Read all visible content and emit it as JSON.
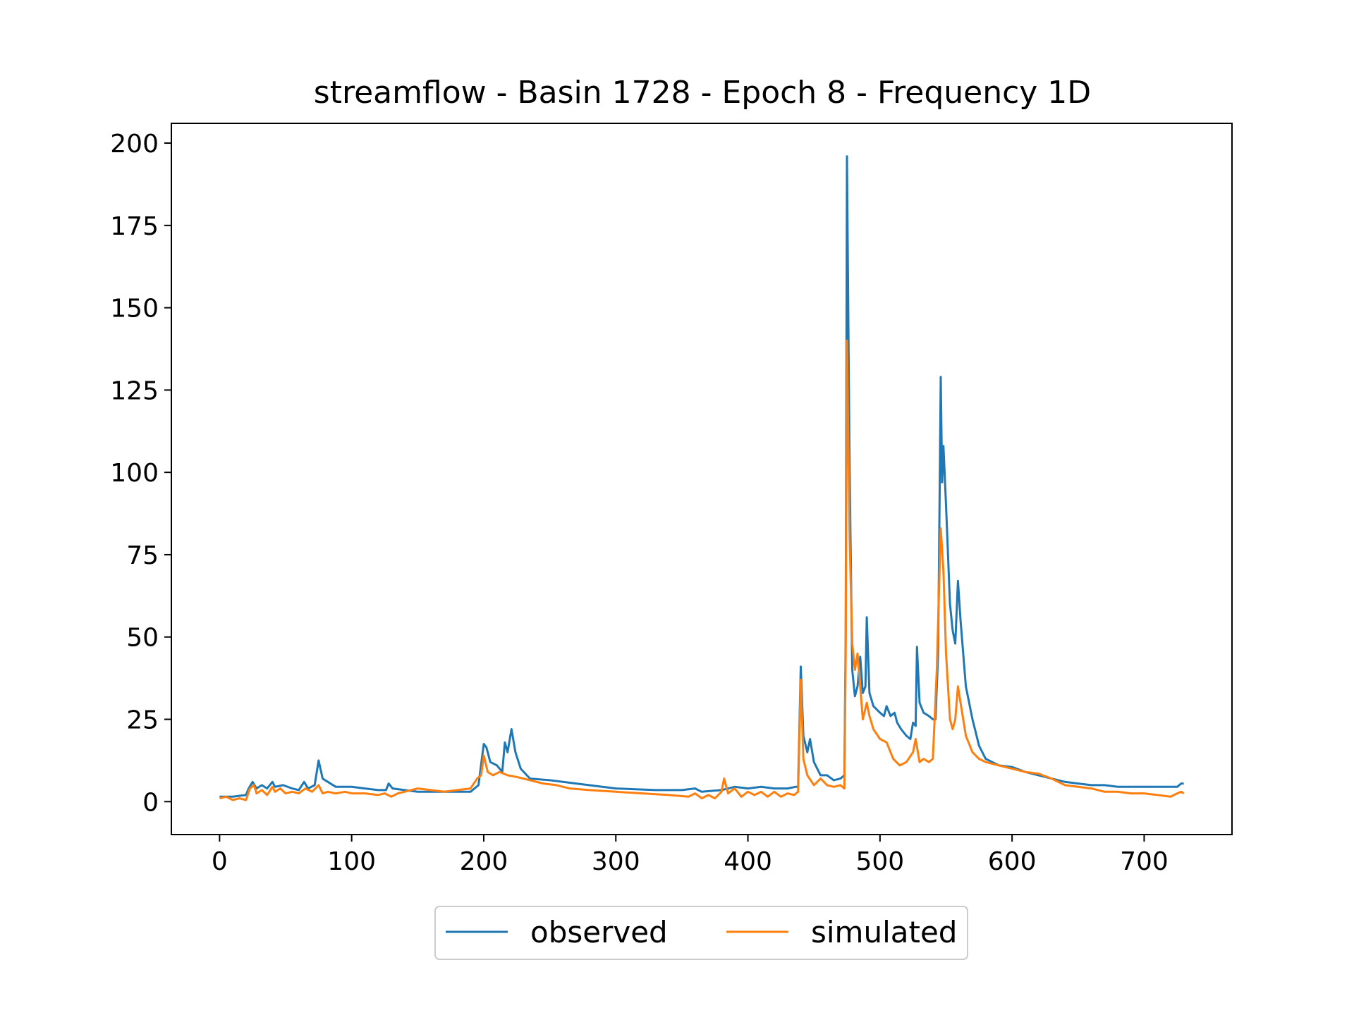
{
  "chart_data": {
    "type": "line",
    "title": "streamflow - Basin 1728 - Epoch 8 - Frequency 1D",
    "xlabel": "",
    "ylabel": "",
    "xlim": [
      -36.5,
      766.5
    ],
    "ylim": [
      -10,
      206
    ],
    "xticks": [
      0,
      100,
      200,
      300,
      400,
      500,
      600,
      700
    ],
    "yticks": [
      0,
      25,
      50,
      75,
      100,
      125,
      150,
      175,
      200
    ],
    "grid": false,
    "legend_placement": "bottom-center, below plot",
    "series": [
      {
        "name": "observed",
        "color": "#1f77b4",
        "points": [
          [
            0,
            1.5
          ],
          [
            10,
            1.5
          ],
          [
            20,
            2
          ],
          [
            22,
            4
          ],
          [
            25,
            6
          ],
          [
            28,
            4
          ],
          [
            32,
            5
          ],
          [
            36,
            4
          ],
          [
            40,
            6
          ],
          [
            42,
            4.5
          ],
          [
            48,
            5
          ],
          [
            55,
            4
          ],
          [
            60,
            3.5
          ],
          [
            64,
            6
          ],
          [
            67,
            4
          ],
          [
            72,
            5
          ],
          [
            75,
            12.5
          ],
          [
            78,
            7
          ],
          [
            82,
            6
          ],
          [
            88,
            4.5
          ],
          [
            100,
            4.5
          ],
          [
            110,
            4
          ],
          [
            120,
            3.5
          ],
          [
            126,
            3.5
          ],
          [
            128,
            5.5
          ],
          [
            131,
            4
          ],
          [
            140,
            3.5
          ],
          [
            150,
            3
          ],
          [
            170,
            3
          ],
          [
            190,
            3
          ],
          [
            196,
            5
          ],
          [
            200,
            17.5
          ],
          [
            202,
            16.5
          ],
          [
            205,
            12
          ],
          [
            210,
            11
          ],
          [
            214,
            9
          ],
          [
            216,
            18
          ],
          [
            218,
            15
          ],
          [
            221,
            22
          ],
          [
            224,
            15
          ],
          [
            228,
            10
          ],
          [
            235,
            7
          ],
          [
            250,
            6.5
          ],
          [
            270,
            5.5
          ],
          [
            300,
            4
          ],
          [
            330,
            3.5
          ],
          [
            350,
            3.5
          ],
          [
            360,
            4
          ],
          [
            365,
            3
          ],
          [
            380,
            3.5
          ],
          [
            390,
            4.5
          ],
          [
            400,
            4
          ],
          [
            410,
            4.5
          ],
          [
            420,
            4
          ],
          [
            430,
            4
          ],
          [
            436,
            4.5
          ],
          [
            438,
            4.5
          ],
          [
            440,
            41
          ],
          [
            442,
            20
          ],
          [
            445,
            15
          ],
          [
            447,
            19
          ],
          [
            450,
            12
          ],
          [
            455,
            8
          ],
          [
            460,
            8
          ],
          [
            465,
            6.5
          ],
          [
            470,
            7
          ],
          [
            473,
            8
          ],
          [
            474,
            50
          ],
          [
            475,
            196
          ],
          [
            477,
            100
          ],
          [
            479,
            40
          ],
          [
            481,
            32
          ],
          [
            483,
            35
          ],
          [
            485,
            44
          ],
          [
            487,
            33
          ],
          [
            489,
            35
          ],
          [
            490,
            56
          ],
          [
            492,
            33
          ],
          [
            495,
            29
          ],
          [
            500,
            27
          ],
          [
            503,
            26
          ],
          [
            505,
            29
          ],
          [
            508,
            26
          ],
          [
            511,
            27
          ],
          [
            513,
            24
          ],
          [
            516,
            22
          ],
          [
            520,
            20
          ],
          [
            523,
            19
          ],
          [
            525,
            24
          ],
          [
            527,
            23
          ],
          [
            528,
            47
          ],
          [
            530,
            30
          ],
          [
            533,
            27
          ],
          [
            537,
            26
          ],
          [
            540,
            25
          ],
          [
            542,
            25
          ],
          [
            544,
            45
          ],
          [
            546,
            129
          ],
          [
            547,
            97
          ],
          [
            548,
            108
          ],
          [
            550,
            90
          ],
          [
            553,
            60
          ],
          [
            555,
            52
          ],
          [
            557,
            48
          ],
          [
            559,
            67
          ],
          [
            561,
            55
          ],
          [
            565,
            35
          ],
          [
            570,
            25
          ],
          [
            575,
            17
          ],
          [
            580,
            13
          ],
          [
            585,
            12
          ],
          [
            590,
            11
          ],
          [
            600,
            10.5
          ],
          [
            610,
            9
          ],
          [
            620,
            8
          ],
          [
            630,
            7
          ],
          [
            640,
            6
          ],
          [
            650,
            5.5
          ],
          [
            660,
            5
          ],
          [
            670,
            5
          ],
          [
            680,
            4.5
          ],
          [
            700,
            4.5
          ],
          [
            710,
            4.5
          ],
          [
            720,
            4.5
          ],
          [
            725,
            4.5
          ],
          [
            728,
            5.5
          ],
          [
            730,
            5.5
          ]
        ]
      },
      {
        "name": "simulated",
        "color": "#ff7f0e",
        "points": [
          [
            0,
            1
          ],
          [
            5,
            1.5
          ],
          [
            10,
            0.5
          ],
          [
            15,
            1
          ],
          [
            20,
            0.5
          ],
          [
            23,
            4
          ],
          [
            26,
            5
          ],
          [
            28,
            2.5
          ],
          [
            32,
            3.5
          ],
          [
            36,
            2
          ],
          [
            40,
            4.5
          ],
          [
            42,
            3
          ],
          [
            46,
            4
          ],
          [
            50,
            2.5
          ],
          [
            55,
            3
          ],
          [
            60,
            2.5
          ],
          [
            65,
            4
          ],
          [
            70,
            3
          ],
          [
            75,
            5
          ],
          [
            78,
            2.5
          ],
          [
            82,
            3
          ],
          [
            88,
            2.5
          ],
          [
            95,
            3
          ],
          [
            100,
            2.5
          ],
          [
            110,
            2.5
          ],
          [
            120,
            2
          ],
          [
            125,
            2.5
          ],
          [
            130,
            1.5
          ],
          [
            135,
            2.5
          ],
          [
            140,
            3
          ],
          [
            150,
            4
          ],
          [
            160,
            3.5
          ],
          [
            170,
            3
          ],
          [
            180,
            3.5
          ],
          [
            190,
            4
          ],
          [
            195,
            7
          ],
          [
            198,
            8
          ],
          [
            200,
            14
          ],
          [
            203,
            9
          ],
          [
            207,
            8
          ],
          [
            212,
            9
          ],
          [
            218,
            8
          ],
          [
            225,
            7.5
          ],
          [
            235,
            6.5
          ],
          [
            245,
            5.5
          ],
          [
            255,
            5
          ],
          [
            265,
            4
          ],
          [
            280,
            3.5
          ],
          [
            300,
            3
          ],
          [
            320,
            2.5
          ],
          [
            340,
            2
          ],
          [
            355,
            1.5
          ],
          [
            360,
            2.5
          ],
          [
            365,
            1
          ],
          [
            370,
            2
          ],
          [
            375,
            1
          ],
          [
            380,
            3
          ],
          [
            382,
            7
          ],
          [
            385,
            2.5
          ],
          [
            390,
            4
          ],
          [
            395,
            1.5
          ],
          [
            400,
            3
          ],
          [
            405,
            2
          ],
          [
            410,
            3
          ],
          [
            415,
            1.5
          ],
          [
            420,
            3
          ],
          [
            425,
            1.5
          ],
          [
            430,
            2.5
          ],
          [
            435,
            2
          ],
          [
            438,
            3
          ],
          [
            440,
            37
          ],
          [
            442,
            13
          ],
          [
            445,
            8
          ],
          [
            450,
            5
          ],
          [
            455,
            7
          ],
          [
            460,
            5
          ],
          [
            465,
            4.5
          ],
          [
            470,
            5
          ],
          [
            473,
            4
          ],
          [
            474,
            45
          ],
          [
            475,
            140
          ],
          [
            477,
            80
          ],
          [
            479,
            48
          ],
          [
            481,
            40
          ],
          [
            483,
            45
          ],
          [
            485,
            35
          ],
          [
            487,
            25
          ],
          [
            490,
            30
          ],
          [
            492,
            26
          ],
          [
            495,
            22
          ],
          [
            500,
            19
          ],
          [
            505,
            18
          ],
          [
            510,
            13
          ],
          [
            515,
            11
          ],
          [
            520,
            12
          ],
          [
            525,
            15
          ],
          [
            527,
            19
          ],
          [
            530,
            12
          ],
          [
            533,
            13
          ],
          [
            537,
            12
          ],
          [
            540,
            13
          ],
          [
            543,
            40
          ],
          [
            546,
            83
          ],
          [
            548,
            70
          ],
          [
            550,
            45
          ],
          [
            553,
            25
          ],
          [
            555,
            22
          ],
          [
            557,
            25
          ],
          [
            559,
            35
          ],
          [
            561,
            30
          ],
          [
            565,
            20
          ],
          [
            570,
            15
          ],
          [
            575,
            13
          ],
          [
            580,
            12
          ],
          [
            590,
            11
          ],
          [
            600,
            10
          ],
          [
            610,
            9
          ],
          [
            620,
            8.5
          ],
          [
            630,
            7
          ],
          [
            640,
            5
          ],
          [
            650,
            4.5
          ],
          [
            660,
            4
          ],
          [
            670,
            3
          ],
          [
            680,
            3
          ],
          [
            690,
            2.5
          ],
          [
            700,
            2.5
          ],
          [
            710,
            2
          ],
          [
            720,
            1.5
          ],
          [
            725,
            2.5
          ],
          [
            728,
            3
          ],
          [
            730,
            2.5
          ]
        ]
      }
    ]
  }
}
